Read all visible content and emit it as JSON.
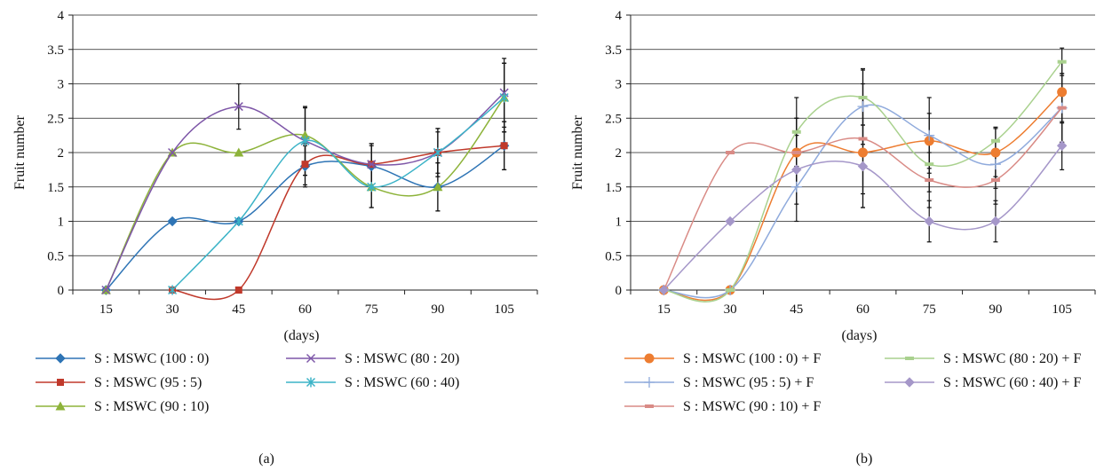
{
  "chart_data": [
    {
      "type": "line",
      "panel_label": "(a)",
      "xlabel": "(days)",
      "ylabel": "Fruit number",
      "ylim": [
        0,
        4
      ],
      "yticks": [
        "0",
        "0.5",
        "1",
        "1.5",
        "2",
        "2.5",
        "3",
        "3.5",
        "4"
      ],
      "categories": [
        "15",
        "30",
        "45",
        "60",
        "75",
        "90",
        "105"
      ],
      "grid": true,
      "legend_position": "bottom",
      "series": [
        {
          "name": "S : MSWC (100 : 0)",
          "color": "#2e74b5",
          "marker": "diamond",
          "values": [
            0,
            1,
            1,
            1.8,
            1.8,
            1.5,
            2.1
          ],
          "errors": [
            0,
            0,
            0,
            0.3,
            0.3,
            0.35,
            0.35
          ]
        },
        {
          "name": "S : MSWC (95 : 5)",
          "color": "#c0392b",
          "marker": "square",
          "values": [
            null,
            0,
            0,
            1.83,
            1.83,
            2,
            2.1
          ],
          "errors": [
            0,
            0,
            0,
            0.3,
            0.3,
            0.3,
            0.35
          ]
        },
        {
          "name": "S : MSWC (90 : 10)",
          "color": "#8db33a",
          "marker": "triangle",
          "values": [
            0,
            2,
            2,
            2.25,
            1.5,
            1.5,
            2.8
          ],
          "errors": [
            0,
            0,
            0,
            0.4,
            0.3,
            0.35,
            0.5
          ]
        },
        {
          "name": "S : MSWC (80 : 20)",
          "color": "#7e57a8",
          "marker": "x",
          "values": [
            0,
            2,
            2.67,
            2.17,
            1.83,
            2,
            2.87
          ],
          "errors": [
            0,
            0,
            0.33,
            0.5,
            0.3,
            0.35,
            0.5
          ]
        },
        {
          "name": "S : MSWC (60 : 40)",
          "color": "#3bb3c7",
          "marker": "star",
          "values": [
            null,
            0,
            1,
            2.17,
            1.5,
            2,
            2.8
          ],
          "errors": [
            0,
            0,
            0,
            0.5,
            0.3,
            0.35,
            0.5
          ]
        }
      ]
    },
    {
      "type": "line",
      "panel_label": "(b)",
      "xlabel": "(days)",
      "ylabel": "Fruit number",
      "ylim": [
        0,
        4
      ],
      "yticks": [
        "0",
        "0.5",
        "1",
        "1.5",
        "2",
        "2.5",
        "3",
        "3.5",
        "4"
      ],
      "categories": [
        "15",
        "30",
        "45",
        "60",
        "75",
        "90",
        "105"
      ],
      "grid": true,
      "legend_position": "bottom",
      "series": [
        {
          "name": "S : MSWC (100 : 0) + F",
          "color": "#ed7d31",
          "marker": "circle",
          "values": [
            0,
            0,
            2,
            2,
            2.17,
            2,
            2.88
          ],
          "errors": [
            0,
            0,
            0.5,
            0.8,
            0.4,
            0.35,
            0.45
          ]
        },
        {
          "name": "S : MSWC (95 : 5) + F",
          "color": "#8faadc",
          "marker": "plus",
          "values": [
            0,
            0,
            1.5,
            2.67,
            2.25,
            1.83,
            2.65
          ],
          "errors": [
            0,
            0,
            0.5,
            0.55,
            0.55,
            0.35,
            0.5
          ]
        },
        {
          "name": "S : MSWC (90 : 10) + F",
          "color": "#d98b86",
          "marker": "dash",
          "values": [
            0,
            2,
            2,
            2.2,
            1.6,
            1.6,
            2.65
          ],
          "errors": [
            0,
            0,
            0.5,
            0.8,
            0.4,
            0.35,
            0.5
          ]
        },
        {
          "name": "S : MSWC (80 : 20) + F",
          "color": "#a9d18e",
          "marker": "dash",
          "values": [
            0,
            0,
            2.3,
            2.8,
            1.83,
            2.17,
            3.32
          ],
          "errors": [
            0,
            0,
            0.5,
            0.4,
            0.4,
            0.2,
            0.2
          ]
        },
        {
          "name": "S : MSWC (60 : 40) + F",
          "color": "#a597c9",
          "marker": "diamond",
          "values": [
            0,
            1,
            1.75,
            1.8,
            1,
            1,
            2.1
          ],
          "errors": [
            0,
            0,
            0.5,
            0.6,
            0.3,
            0.3,
            0.35
          ]
        }
      ]
    }
  ]
}
